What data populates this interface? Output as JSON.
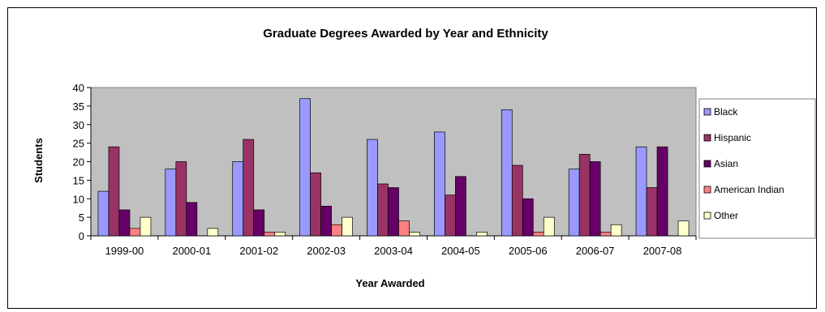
{
  "chart_data": {
    "type": "bar",
    "title": "Graduate Degrees Awarded by Year and Ethnicity",
    "xlabel": "Year Awarded",
    "ylabel": "Students",
    "ylim": [
      0,
      40
    ],
    "yticks": [
      0,
      5,
      10,
      15,
      20,
      25,
      30,
      35,
      40
    ],
    "grid": false,
    "legend_position": "right",
    "plot_background": "#c0c0c0",
    "categories": [
      "1999-00",
      "2000-01",
      "2001-02",
      "2002-03",
      "2003-04",
      "2004-05",
      "2005-06",
      "2006-07",
      "2007-08"
    ],
    "series": [
      {
        "name": "Black",
        "color": "#9999ff",
        "values": [
          12,
          18,
          20,
          37,
          26,
          28,
          34,
          18,
          24
        ]
      },
      {
        "name": "Hispanic",
        "color": "#993366",
        "values": [
          24,
          20,
          26,
          17,
          14,
          11,
          19,
          22,
          13
        ]
      },
      {
        "name": "Asian",
        "color": "#660066",
        "values": [
          7,
          9,
          7,
          8,
          13,
          16,
          10,
          20,
          24
        ]
      },
      {
        "name": "American Indian",
        "color": "#ff8080",
        "values": [
          2,
          0,
          1,
          3,
          4,
          0,
          1,
          1,
          0
        ]
      },
      {
        "name": "Other",
        "color": "#ffffcc",
        "values": [
          5,
          2,
          1,
          5,
          1,
          1,
          5,
          3,
          4
        ]
      }
    ]
  }
}
